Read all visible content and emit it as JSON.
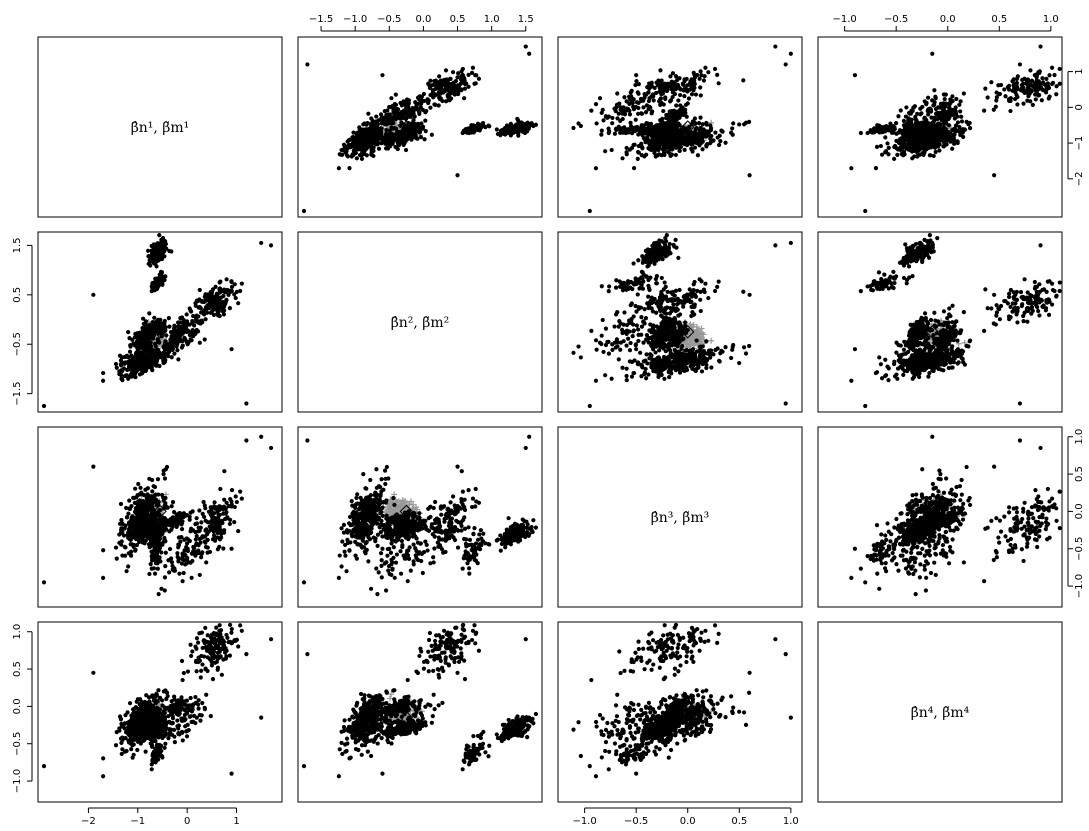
{
  "chart_data": {
    "type": "scatter",
    "layout": "pairs-matrix",
    "variables": [
      {
        "id": "v1",
        "label": "β̂n¹, β̃m¹",
        "range": [
          -2.9,
          1.8
        ],
        "ticks": [
          -2,
          -1,
          0,
          1
        ]
      },
      {
        "id": "v2",
        "label": "β̂n², β̃m²",
        "range": [
          -1.75,
          1.65
        ],
        "ticks": [
          -1.5,
          -1.0,
          -0.5,
          0.0,
          0.5,
          1.0,
          1.5
        ]
      },
      {
        "id": "v3",
        "label": "β̂n³, β̃m³",
        "range": [
          -1.2,
          1.05
        ],
        "ticks": [
          -1.0,
          -0.5,
          0.0,
          0.5,
          1.0
        ]
      },
      {
        "id": "v4",
        "label": "β̂n⁴, β̃m⁴",
        "range": [
          -1.2,
          1.05
        ],
        "ticks": [
          -1.0,
          -0.5,
          0.0,
          0.5,
          1.0
        ]
      }
    ],
    "axis_tick_labels": {
      "v1": [
        "−2",
        "−1",
        "0",
        "1"
      ],
      "v2": [
        "−1.5",
        "−1.0",
        "−0.5",
        "0.0",
        "0.5",
        "1.0",
        "1.5"
      ],
      "v2_left": [
        "−1.5",
        "−0.5",
        "0.5",
        "1.5"
      ],
      "v3": [
        "−1.0",
        "−0.5",
        "0.0",
        "0.5",
        "1.0"
      ],
      "v4": [
        "−1.0",
        "−0.5",
        "0.0",
        "0.5",
        "1.0"
      ]
    },
    "series": [
      {
        "marker": "filled-circle",
        "color": "#000000",
        "clusters": [
          {
            "center": [
              -0.9,
              -0.85,
              -0.1,
              -0.2
            ],
            "spread": [
              0.3,
              0.2,
              0.3,
              0.25
            ],
            "count": 380
          },
          {
            "center": [
              0.55,
              0.35,
              -0.15,
              0.8
            ],
            "spread": [
              0.3,
              0.25,
              0.3,
              0.25
            ],
            "count": 150
          },
          {
            "center": [
              -0.8,
              -0.3,
              -0.25,
              -0.3
            ],
            "spread": [
              0.25,
              0.2,
              0.08,
              0.06
            ],
            "count": 180
          },
          {
            "center": [
              -0.2,
              -0.35,
              -0.1,
              0.0
            ],
            "spread": [
              0.12,
              0.15,
              0.06,
              0.08
            ],
            "count": 90
          },
          {
            "center": [
              -0.6,
              1.35,
              -0.3,
              -0.3
            ],
            "spread": [
              0.12,
              0.15,
              0.1,
              0.1
            ],
            "count": 150
          },
          {
            "center": [
              -0.6,
              0.75,
              -0.5,
              -0.6
            ],
            "spread": [
              0.1,
              0.12,
              0.15,
              0.15
            ],
            "count": 60
          },
          {
            "center": [
              -0.1,
              -0.3,
              -0.6,
              -0.2
            ],
            "spread": [
              0.35,
              0.3,
              0.25,
              0.2
            ],
            "count": 80
          }
        ],
        "outliers": [
          [
            -2.9,
            -1.75,
            -0.95,
            -0.8
          ],
          [
            1.7,
            1.5,
            0.85,
            0.9
          ],
          [
            1.2,
            -1.7,
            0.95,
            0.7
          ],
          [
            -1.9,
            0.5,
            0.6,
            0.45
          ],
          [
            1.5,
            1.55,
            1.0,
            -0.15
          ],
          [
            0.9,
            -0.6,
            -0.5,
            -0.9
          ]
        ]
      },
      {
        "marker": "plus",
        "color": "#999999",
        "center": [
          -0.7,
          -0.35,
          0.0,
          -0.1
        ],
        "spread": [
          0.12,
          0.12,
          0.1,
          0.08
        ],
        "count": 140
      }
    ],
    "highlight": {
      "marker": "diamond",
      "center": [
        -0.55,
        -0.25,
        0.0,
        -0.15
      ]
    }
  }
}
